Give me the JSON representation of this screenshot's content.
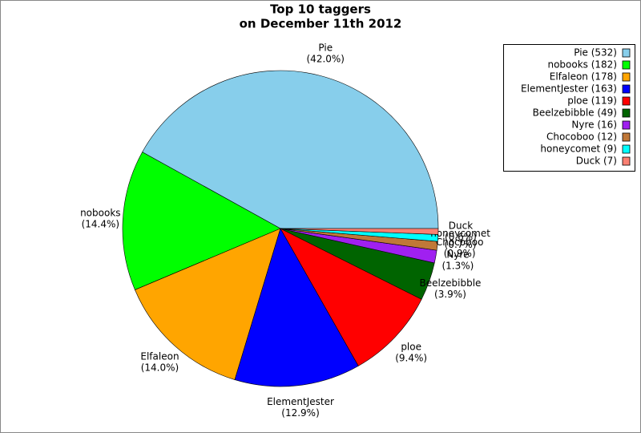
{
  "chart_data": {
    "type": "pie",
    "title": [
      "Top 10 taggers",
      "on December 11th 2012"
    ],
    "categories": [
      "Pie",
      "nobooks",
      "Elfaleon",
      "ElementJester",
      "ploe",
      "Beelzebibble",
      "Nyre",
      "Chocoboo",
      "honeycomet",
      "Duck"
    ],
    "values": [
      42.0,
      14.4,
      14.0,
      12.9,
      9.4,
      3.9,
      1.3,
      0.9,
      0.7,
      0.6
    ],
    "value_labels": [
      "(42.0%)",
      "(14.4%)",
      "(14.0%)",
      "(12.9%)",
      "(9.4%)",
      "(3.9%)",
      "(1.3%)",
      "(0.9%)",
      "(0.7%)",
      "(0.6%)"
    ],
    "legend_labels": [
      "Pie (532)",
      "nobooks (182)",
      "Elfaleon (178)",
      "ElementJester (163)",
      "ploe (119)",
      "Beelzebibble (49)",
      "Nyre (16)",
      "Chocoboo (12)",
      "honeycomet (9)",
      "Duck (7)"
    ],
    "colors": [
      "#87ceeb",
      "#00ff00",
      "#ffa500",
      "#0000ff",
      "#ff0000",
      "#006400",
      "#a020f0",
      "#c07838",
      "#00ffff",
      "#fa8072"
    ],
    "legend": "upper right"
  }
}
